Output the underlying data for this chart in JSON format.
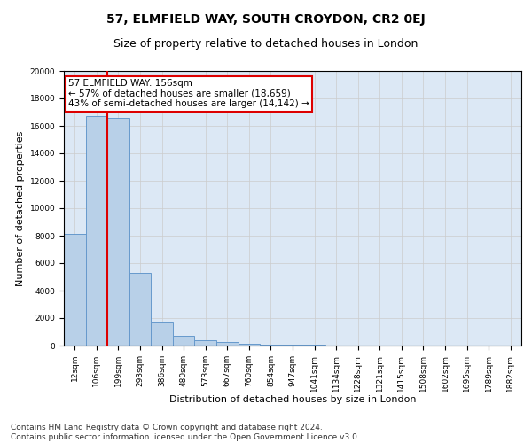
{
  "title": "57, ELMFIELD WAY, SOUTH CROYDON, CR2 0EJ",
  "subtitle": "Size of property relative to detached houses in London",
  "xlabel": "Distribution of detached houses by size in London",
  "ylabel": "Number of detached properties",
  "categories": [
    "12sqm",
    "106sqm",
    "199sqm",
    "293sqm",
    "386sqm",
    "480sqm",
    "573sqm",
    "667sqm",
    "760sqm",
    "854sqm",
    "947sqm",
    "1041sqm",
    "1134sqm",
    "1228sqm",
    "1321sqm",
    "1415sqm",
    "1508sqm",
    "1602sqm",
    "1695sqm",
    "1789sqm",
    "1882sqm"
  ],
  "values": [
    8100,
    16700,
    16600,
    5300,
    1750,
    700,
    380,
    270,
    160,
    90,
    60,
    40,
    25,
    20,
    15,
    10,
    8,
    5,
    4,
    3,
    2
  ],
  "bar_color": "#b8d0e8",
  "bar_edge_color": "#6699cc",
  "red_line_x": 2.0,
  "annotation_text": "57 ELMFIELD WAY: 156sqm\n← 57% of detached houses are smaller (18,659)\n43% of semi-detached houses are larger (14,142) →",
  "annotation_box_color": "#ffffff",
  "annotation_box_edge_color": "#dd0000",
  "red_line_color": "#dd0000",
  "ylim": [
    0,
    20000
  ],
  "yticks": [
    0,
    2000,
    4000,
    6000,
    8000,
    10000,
    12000,
    14000,
    16000,
    18000,
    20000
  ],
  "grid_color": "#cccccc",
  "background_color": "#dce8f5",
  "footer_line1": "Contains HM Land Registry data © Crown copyright and database right 2024.",
  "footer_line2": "Contains public sector information licensed under the Open Government Licence v3.0.",
  "title_fontsize": 10,
  "subtitle_fontsize": 9,
  "annotation_fontsize": 7.5,
  "tick_fontsize": 6.5,
  "ylabel_fontsize": 8,
  "xlabel_fontsize": 8,
  "footer_fontsize": 6.5
}
